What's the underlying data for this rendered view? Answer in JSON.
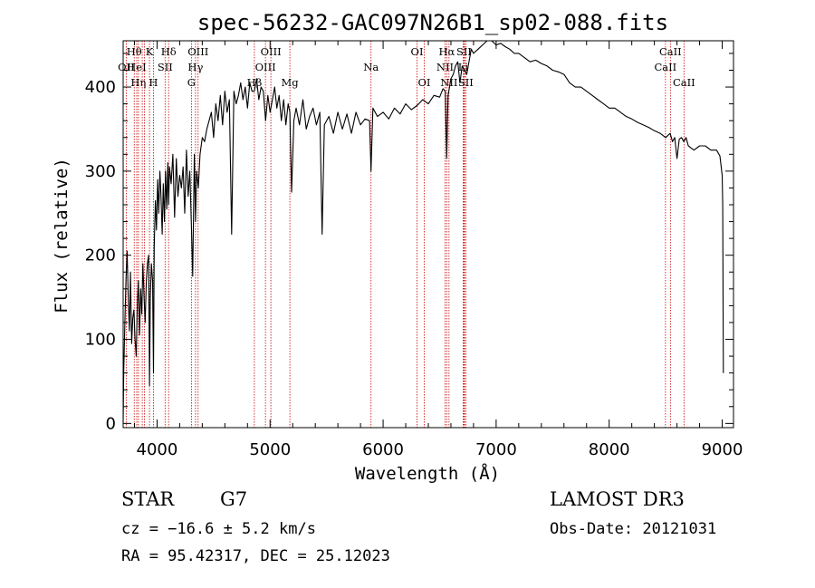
{
  "chart_data": {
    "type": "line",
    "title": "spec-56232-GAC097N26B1_sp02-088.fits",
    "xlabel": "Wavelength (Å)",
    "ylabel": "Flux (relative)",
    "xlim": [
      3700,
      9100
    ],
    "ylim": [
      -5,
      455
    ],
    "xticks": [
      4000,
      5000,
      6000,
      7000,
      8000,
      9000
    ],
    "yticks": [
      0,
      100,
      200,
      300,
      400
    ],
    "line_color": "#000000",
    "marker_color": "#cc0000",
    "series": [
      {
        "x": [
          3700,
          3705,
          3715,
          3725,
          3735,
          3745,
          3755,
          3765,
          3775,
          3785,
          3795,
          3805,
          3815,
          3825,
          3835,
          3845,
          3855,
          3865,
          3875,
          3885,
          3895,
          3905,
          3915,
          3925,
          3933,
          3940,
          3950,
          3960,
          3968,
          3975,
          3985,
          3995,
          4005,
          4015,
          4025,
          4035,
          4045,
          4055,
          4065,
          4075,
          4085,
          4095,
          4102,
          4110,
          4125,
          4140,
          4155,
          4170,
          4185,
          4200,
          4215,
          4230,
          4245,
          4260,
          4275,
          4290,
          4305,
          4315,
          4330,
          4340,
          4350,
          4365,
          4380,
          4400,
          4420,
          4440,
          4460,
          4480,
          4500,
          4520,
          4540,
          4560,
          4580,
          4600,
          4620,
          4640,
          4660,
          4680,
          4700,
          4720,
          4740,
          4760,
          4780,
          4800,
          4820,
          4840,
          4861,
          4880,
          4900,
          4920,
          4940,
          4960,
          4980,
          5000,
          5020,
          5040,
          5060,
          5080,
          5100,
          5120,
          5140,
          5160,
          5175,
          5190,
          5210,
          5230,
          5260,
          5290,
          5320,
          5350,
          5380,
          5410,
          5440,
          5460,
          5480,
          5520,
          5560,
          5600,
          5640,
          5680,
          5720,
          5760,
          5800,
          5840,
          5880,
          5893,
          5910,
          5950,
          6000,
          6050,
          6100,
          6150,
          6200,
          6250,
          6300,
          6350,
          6400,
          6450,
          6500,
          6530,
          6550,
          6563,
          6575,
          6600,
          6620,
          6640,
          6660,
          6680,
          6700,
          6720,
          6740,
          6760,
          6780,
          6800,
          6840,
          6880,
          6920,
          6960,
          7000,
          7040,
          7080,
          7120,
          7160,
          7200,
          7250,
          7300,
          7350,
          7400,
          7450,
          7500,
          7550,
          7600,
          7650,
          7700,
          7750,
          7800,
          7850,
          7900,
          7950,
          8000,
          8050,
          8100,
          8150,
          8200,
          8250,
          8300,
          8350,
          8400,
          8450,
          8500,
          8540,
          8560,
          8580,
          8600,
          8620,
          8640,
          8660,
          8680,
          8700,
          8750,
          8800,
          8850,
          8900,
          8950,
          8980,
          9000,
          9005,
          9010
        ],
        "y": [
          0,
          60,
          120,
          170,
          205,
          150,
          110,
          180,
          95,
          125,
          135,
          100,
          80,
          140,
          170,
          105,
          160,
          130,
          190,
          150,
          120,
          170,
          190,
          200,
          45,
          150,
          190,
          170,
          60,
          210,
          265,
          230,
          290,
          250,
          300,
          270,
          225,
          285,
          240,
          300,
          255,
          310,
          260,
          305,
          285,
          320,
          245,
          315,
          270,
          295,
          280,
          305,
          250,
          325,
          270,
          300,
          230,
          175,
          320,
          240,
          300,
          280,
          320,
          340,
          335,
          350,
          360,
          370,
          340,
          380,
          360,
          390,
          355,
          395,
          370,
          385,
          225,
          395,
          380,
          390,
          405,
          385,
          400,
          375,
          405,
          395,
          395,
          410,
          385,
          400,
          395,
          360,
          390,
          370,
          385,
          400,
          375,
          390,
          360,
          385,
          355,
          380,
          370,
          275,
          360,
          375,
          355,
          385,
          350,
          365,
          375,
          355,
          370,
          225,
          355,
          365,
          345,
          370,
          350,
          368,
          345,
          370,
          355,
          362,
          360,
          300,
          375,
          365,
          370,
          362,
          375,
          368,
          380,
          373,
          378,
          385,
          380,
          390,
          388,
          398,
          395,
          315,
          390,
          410,
          415,
          425,
          430,
          405,
          425,
          420,
          415,
          430,
          445,
          440,
          445,
          450,
          455,
          455,
          450,
          452,
          448,
          445,
          440,
          440,
          435,
          430,
          432,
          428,
          425,
          420,
          418,
          415,
          405,
          400,
          400,
          395,
          390,
          385,
          380,
          375,
          375,
          370,
          365,
          362,
          358,
          355,
          352,
          348,
          345,
          340,
          345,
          335,
          340,
          315,
          338,
          340,
          335,
          340,
          330,
          325,
          330,
          330,
          325,
          325,
          318,
          295,
          260,
          60
        ]
      }
    ],
    "line_markers": [
      {
        "wl": 3727,
        "label": "OII",
        "row": 2
      },
      {
        "wl": 3798,
        "label": "Hθ",
        "row": 1
      },
      {
        "wl": 3820,
        "label": "HeI",
        "row": 2
      },
      {
        "wl": 3835,
        "label": "Hη",
        "row": 3
      },
      {
        "wl": 3869,
        "label": "",
        "row": 0
      },
      {
        "wl": 3889,
        "label": "",
        "row": 0
      },
      {
        "wl": 3933,
        "label": "K",
        "row": 1
      },
      {
        "wl": 3968,
        "label": "H",
        "row": 3
      },
      {
        "wl": 4071,
        "label": "SII",
        "row": 2
      },
      {
        "wl": 4102,
        "label": "Hδ",
        "row": 1
      },
      {
        "wl": 4304,
        "label": "G",
        "row": 3
      },
      {
        "wl": 4340,
        "label": "Hγ",
        "row": 2
      },
      {
        "wl": 4363,
        "label": "OIII",
        "row": 1
      },
      {
        "wl": 4861,
        "label": "Hβ",
        "row": 3
      },
      {
        "wl": 4959,
        "label": "OIII",
        "row": 2
      },
      {
        "wl": 5007,
        "label": "OIII",
        "row": 1
      },
      {
        "wl": 5175,
        "label": "Mg",
        "row": 3
      },
      {
        "wl": 5893,
        "label": "Na",
        "row": 2
      },
      {
        "wl": 6300,
        "label": "OI",
        "row": 1
      },
      {
        "wl": 6364,
        "label": "OI",
        "row": 3
      },
      {
        "wl": 6548,
        "label": "NII",
        "row": 2
      },
      {
        "wl": 6563,
        "label": "Hα",
        "row": 1
      },
      {
        "wl": 6583,
        "label": "NII",
        "row": 3
      },
      {
        "wl": 6716,
        "label": "SII",
        "row": 1
      },
      {
        "wl": 6720,
        "label": "",
        "row": 0
      },
      {
        "wl": 6731,
        "label": "SII",
        "row": 3
      },
      {
        "wl": 6708,
        "label": "Li",
        "row": 2
      },
      {
        "wl": 8498,
        "label": "CaII",
        "row": 2
      },
      {
        "wl": 8542,
        "label": "CaII",
        "row": 1
      },
      {
        "wl": 8662,
        "label": "CaII",
        "row": 3
      }
    ]
  },
  "info": {
    "object_class": "STAR",
    "subclass": "G7",
    "survey": "LAMOST DR3",
    "redshift": "cz = −16.6 ± 5.2 km/s",
    "obs_date": "Obs-Date: 20121031",
    "coords": "RA =  95.42317, DEC =  25.12023"
  }
}
